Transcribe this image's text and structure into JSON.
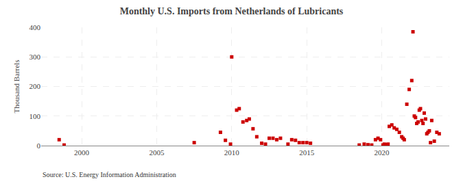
{
  "chart_data": {
    "type": "scatter",
    "title": "Monthly U.S. Imports from Netherlands of Lubricants",
    "ylabel": "Thousand Barrels",
    "annotations": [
      "Source: U.S. Energy Information Administration"
    ],
    "color": "#CC0000",
    "marker": "square",
    "x": [
      1998.5,
      1998.83,
      2007.5,
      2009.25,
      2009.58,
      2009.92,
      2010.0,
      2010.33,
      2010.5,
      2010.75,
      2011.0,
      2011.17,
      2011.42,
      2011.67,
      2012.0,
      2012.25,
      2012.5,
      2012.75,
      2013.0,
      2013.25,
      2013.75,
      2014.0,
      2014.25,
      2014.5,
      2014.75,
      2015.0,
      2015.25,
      2018.5,
      2018.83,
      2019.08,
      2019.33,
      2019.58,
      2019.75,
      2019.92,
      2020.08,
      2020.17,
      2020.25,
      2020.33,
      2020.42,
      2020.5,
      2020.67,
      2020.83,
      2021.0,
      2021.17,
      2021.33,
      2021.42,
      2021.5,
      2021.67,
      2021.83,
      2022.0,
      2022.08,
      2022.17,
      2022.25,
      2022.33,
      2022.42,
      2022.5,
      2022.58,
      2022.67,
      2022.75,
      2022.83,
      2022.92,
      2023.0,
      2023.08,
      2023.17,
      2023.25,
      2023.33,
      2023.5,
      2023.67,
      2023.83
    ],
    "values": [
      20,
      2,
      10,
      45,
      18,
      5,
      300,
      120,
      125,
      80,
      85,
      90,
      57,
      30,
      8,
      5,
      25,
      25,
      20,
      25,
      5,
      20,
      18,
      10,
      10,
      10,
      8,
      2,
      5,
      3,
      2,
      20,
      25,
      20,
      2,
      5,
      3,
      2,
      5,
      65,
      70,
      60,
      55,
      45,
      30,
      25,
      20,
      140,
      190,
      220,
      385,
      100,
      95,
      75,
      80,
      120,
      125,
      85,
      75,
      110,
      90,
      40,
      45,
      50,
      10,
      85,
      15,
      45,
      40
    ],
    "xlim": [
      1997.3,
      2024.5
    ],
    "xticks": [
      2000,
      2005,
      2010,
      2015,
      2020
    ],
    "ylim": [
      0,
      400
    ],
    "yticks": [
      0,
      100,
      200,
      300,
      400
    ],
    "grid": true
  }
}
